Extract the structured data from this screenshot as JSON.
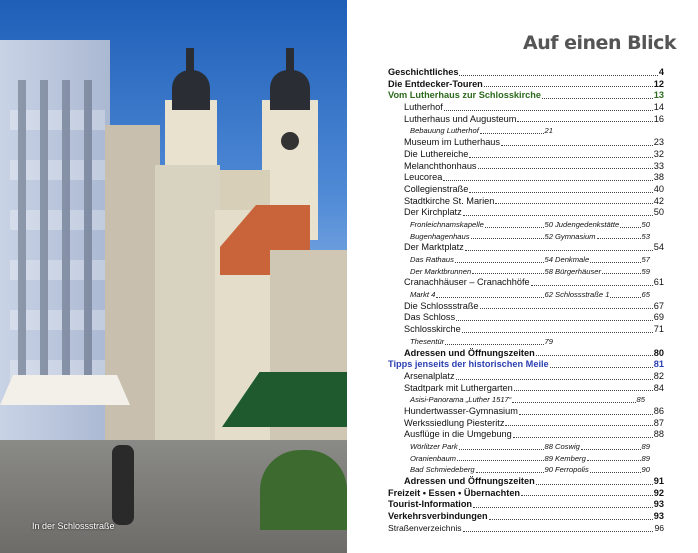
{
  "photo": {
    "caption": "In der Schlossstraße"
  },
  "page": {
    "title": "Auf einen Blick"
  },
  "colors": {
    "green": "#2d6a1e",
    "blue": "#2b3fb0",
    "title": "#555555"
  },
  "toc": [
    {
      "t": "l0",
      "label": "Geschichtliches",
      "page": "4"
    },
    {
      "t": "l0",
      "label": "Die Entdecker-Touren",
      "page": "12"
    },
    {
      "t": "green",
      "label": "Vom Lutherhaus zur Schlosskirche",
      "page": "13"
    },
    {
      "t": "l1",
      "label": "Lutherhof",
      "page": "14"
    },
    {
      "t": "l1",
      "label": "Lutherhaus und Augusteum",
      "page": "16"
    },
    {
      "t": "sub",
      "items": [
        {
          "label": "Bebauung Lutherhof",
          "page": "21"
        }
      ]
    },
    {
      "t": "l1",
      "label": "Museum im Lutherhaus",
      "page": "23"
    },
    {
      "t": "l1",
      "label": "Die Luthereiche",
      "page": "32"
    },
    {
      "t": "l1",
      "label": "Melanchthonhaus",
      "page": "33"
    },
    {
      "t": "l1",
      "label": "Leucorea",
      "page": "38"
    },
    {
      "t": "l1",
      "label": "Collegienstraße",
      "page": "40"
    },
    {
      "t": "l1",
      "label": "Stadtkirche St. Marien",
      "page": "42"
    },
    {
      "t": "l1",
      "label": "Der Kirchplatz",
      "page": "50"
    },
    {
      "t": "sub",
      "items": [
        {
          "label": "Fronleichnamskapelle",
          "page": "50"
        },
        {
          "label": "Judengedenkstätte",
          "page": "50"
        }
      ]
    },
    {
      "t": "sub",
      "items": [
        {
          "label": "Bugenhagenhaus",
          "page": "52"
        },
        {
          "label": "Gymnasium",
          "page": "53"
        }
      ]
    },
    {
      "t": "l1",
      "label": "Der Marktplatz",
      "page": "54"
    },
    {
      "t": "sub",
      "items": [
        {
          "label": "Das Rathaus",
          "page": "54"
        },
        {
          "label": "Denkmale",
          "page": "57"
        }
      ]
    },
    {
      "t": "sub",
      "items": [
        {
          "label": "Der Marktbrunnen",
          "page": "58"
        },
        {
          "label": "Bürgerhäuser",
          "page": "59"
        }
      ]
    },
    {
      "t": "l1",
      "label": "Cranachhäuser – Cranachhöfe",
      "page": "61"
    },
    {
      "t": "sub",
      "items": [
        {
          "label": "Markt 4",
          "page": "62"
        },
        {
          "label": "Schlossstraße 1",
          "page": "65"
        }
      ]
    },
    {
      "t": "l1",
      "label": "Die Schlossstraße",
      "page": "67"
    },
    {
      "t": "l1",
      "label": "Das Schloss",
      "page": "69"
    },
    {
      "t": "l1",
      "label": "Schlosskirche",
      "page": "71"
    },
    {
      "t": "sub",
      "items": [
        {
          "label": "Thesentür",
          "page": "79"
        }
      ]
    },
    {
      "t": "l1b",
      "label": "Adressen und Öffnungszeiten",
      "page": "80"
    },
    {
      "t": "blue",
      "label": "Tipps jenseits der historischen Meile",
      "page": "81"
    },
    {
      "t": "l1",
      "label": "Arsenalplatz",
      "page": "82"
    },
    {
      "t": "l1",
      "label": "Stadtpark mit Luthergarten",
      "page": "84"
    },
    {
      "t": "sub",
      "wide": true,
      "items": [
        {
          "label": "Asisi-Panorama „Luther 1517“",
          "page": "85"
        }
      ]
    },
    {
      "t": "l1",
      "label": "Hundertwasser-Gymnasium",
      "page": "86"
    },
    {
      "t": "l1",
      "label": "Werkssiedlung Piesteritz",
      "page": "87"
    },
    {
      "t": "l1",
      "label": "Ausflüge in die Umgebung",
      "page": "88"
    },
    {
      "t": "sub",
      "items": [
        {
          "label": "Wörlitzer Park",
          "page": "88"
        },
        {
          "label": "Coswig",
          "page": "89"
        }
      ]
    },
    {
      "t": "sub",
      "items": [
        {
          "label": "Oranienbaum",
          "page": "89"
        },
        {
          "label": "Kemberg",
          "page": "89"
        }
      ]
    },
    {
      "t": "sub",
      "items": [
        {
          "label": "Bad Schmiedeberg",
          "page": "90"
        },
        {
          "label": "Ferropolis",
          "page": "90"
        }
      ]
    },
    {
      "t": "l1b",
      "label": "Adressen und Öffnungszeiten",
      "page": "91"
    },
    {
      "t": "l0",
      "label": "Freizeit • Essen • Übernachten",
      "page": "92"
    },
    {
      "t": "l0",
      "label": "Tourist-Information",
      "page": "93"
    },
    {
      "t": "l0",
      "label": "Verkehrsverbindungen",
      "page": "93"
    },
    {
      "t": "plain",
      "label": "Straßenverzeichnis",
      "page": "96"
    }
  ]
}
